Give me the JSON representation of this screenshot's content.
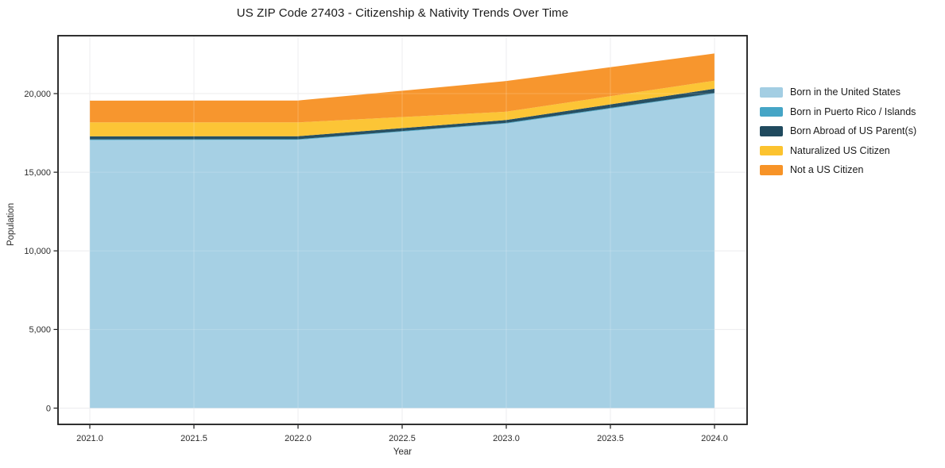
{
  "figure": {
    "title": "US ZIP Code 27403 - Citizenship & Nativity Trends Over Time"
  },
  "chart_data": {
    "type": "area",
    "stacked": true,
    "title": "US ZIP Code 27403 - Citizenship & Nativity Trends Over Time",
    "xlabel": "Year",
    "ylabel": "Population",
    "x": [
      2021,
      2022,
      2023,
      2024
    ],
    "series": [
      {
        "name": "Born in the United States",
        "color": "#a3cee3",
        "values": [
          17050,
          17060,
          18100,
          20000
        ]
      },
      {
        "name": "Born in Puerto Rico / Islands",
        "color": "#45a5c6",
        "values": [
          40,
          40,
          40,
          40
        ]
      },
      {
        "name": "Born Abroad of US Parent(s)",
        "color": "#204a5e",
        "values": [
          190,
          190,
          180,
          270
        ]
      },
      {
        "name": "Naturalized US Citizen",
        "color": "#fcc32f",
        "values": [
          890,
          880,
          530,
          510
        ]
      },
      {
        "name": "Not a US Citizen",
        "color": "#f79327",
        "values": [
          1380,
          1390,
          1950,
          1730
        ]
      }
    ],
    "xticks": [
      2021.0,
      2021.5,
      2022.0,
      2022.5,
      2023.0,
      2023.5,
      2024.0
    ],
    "xtick_labels": [
      "2021.0",
      "2021.5",
      "2022.0",
      "2022.5",
      "2023.0",
      "2023.5",
      "2024.0"
    ],
    "yticks": [
      0,
      5000,
      10000,
      15000,
      20000
    ],
    "ytick_labels": [
      "0",
      "5,000",
      "10,000",
      "15,000",
      "20,000"
    ],
    "xlim": [
      2020.85,
      2024.16
    ],
    "ylim": [
      -1030,
      23680
    ],
    "grid": true,
    "legend_position": "center right",
    "colors": {
      "spine": "#1a1a1a",
      "grid": "#e8e8eb",
      "tick_label": "#2b2b2b"
    }
  }
}
